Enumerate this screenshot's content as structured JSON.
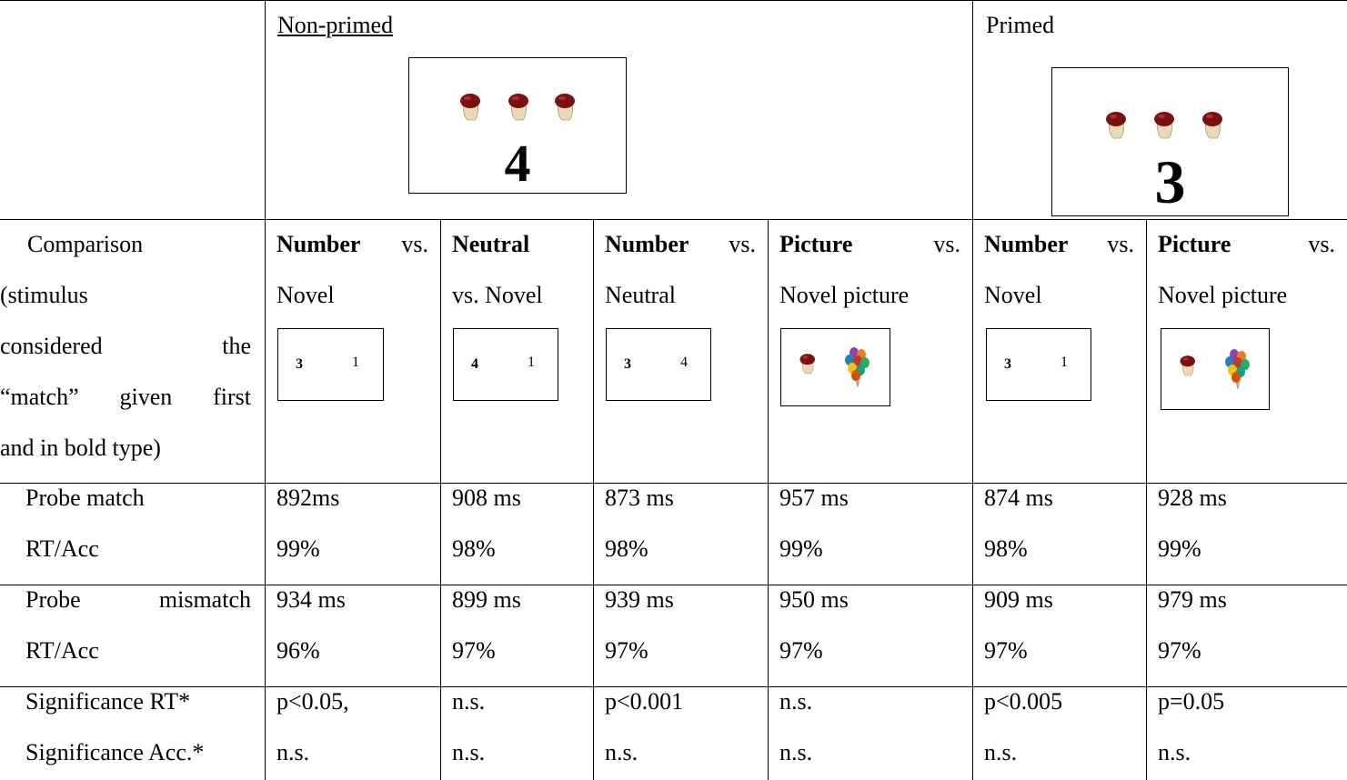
{
  "header": {
    "non_primed": "Non-primed",
    "non_primed_stimulus": "4",
    "primed": "Primed",
    "primed_stimulus": "3"
  },
  "comparison": {
    "label": [
      "Comparison",
      "(stimulus",
      "considered the",
      "“match” given first",
      "and in bold type)"
    ],
    "cells": [
      {
        "line1_bold": "Number",
        "line1": "vs.",
        "line2": "Novel",
        "probe": {
          "match": "3",
          "novel": "1"
        }
      },
      {
        "line1_bold": "Neutral",
        "line2": "vs. Novel",
        "probe": {
          "match": "4",
          "novel": "1"
        }
      },
      {
        "line1_bold": "Number",
        "line1": "vs.",
        "line2": "Neutral",
        "probe": {
          "match": "3",
          "novel": "4"
        }
      },
      {
        "line1_bold": "Picture",
        "line1": "vs.",
        "line2": "Novel picture"
      },
      {
        "line1_bold": "Number",
        "line1": "vs.",
        "line2": "Novel",
        "probe": {
          "match": "3",
          "novel": "1"
        }
      },
      {
        "line1_bold": "Picture",
        "line1": "vs.",
        "line2": "Novel picture"
      }
    ]
  },
  "rows": [
    {
      "label": [
        "Probe match",
        "RT/Acc"
      ],
      "values": [
        [
          "892ms",
          "99%"
        ],
        [
          "908 ms",
          "98%"
        ],
        [
          "873 ms",
          "98%"
        ],
        [
          "957 ms",
          "99%"
        ],
        [
          "874 ms",
          "98%"
        ],
        [
          "928 ms",
          "99%"
        ]
      ]
    },
    {
      "label": [
        "Probe mismatch",
        "RT/Acc"
      ],
      "values": [
        [
          "934 ms",
          "96%"
        ],
        [
          "899 ms",
          "97%"
        ],
        [
          "939 ms",
          "97%"
        ],
        [
          "950 ms",
          "97%"
        ],
        [
          "909 ms",
          "97%"
        ],
        [
          "979 ms",
          "97%"
        ]
      ]
    },
    {
      "label": [
        "Significance RT*",
        "Significance Acc.*"
      ],
      "values": [
        [
          "p<0.05,",
          "n.s."
        ],
        [
          "n.s.",
          "n.s."
        ],
        [
          "p<0.001",
          "n.s."
        ],
        [
          "n.s.",
          "n.s."
        ],
        [
          "p<0.005",
          "n.s."
        ],
        [
          "p=0.05",
          "n.s."
        ]
      ]
    }
  ]
}
